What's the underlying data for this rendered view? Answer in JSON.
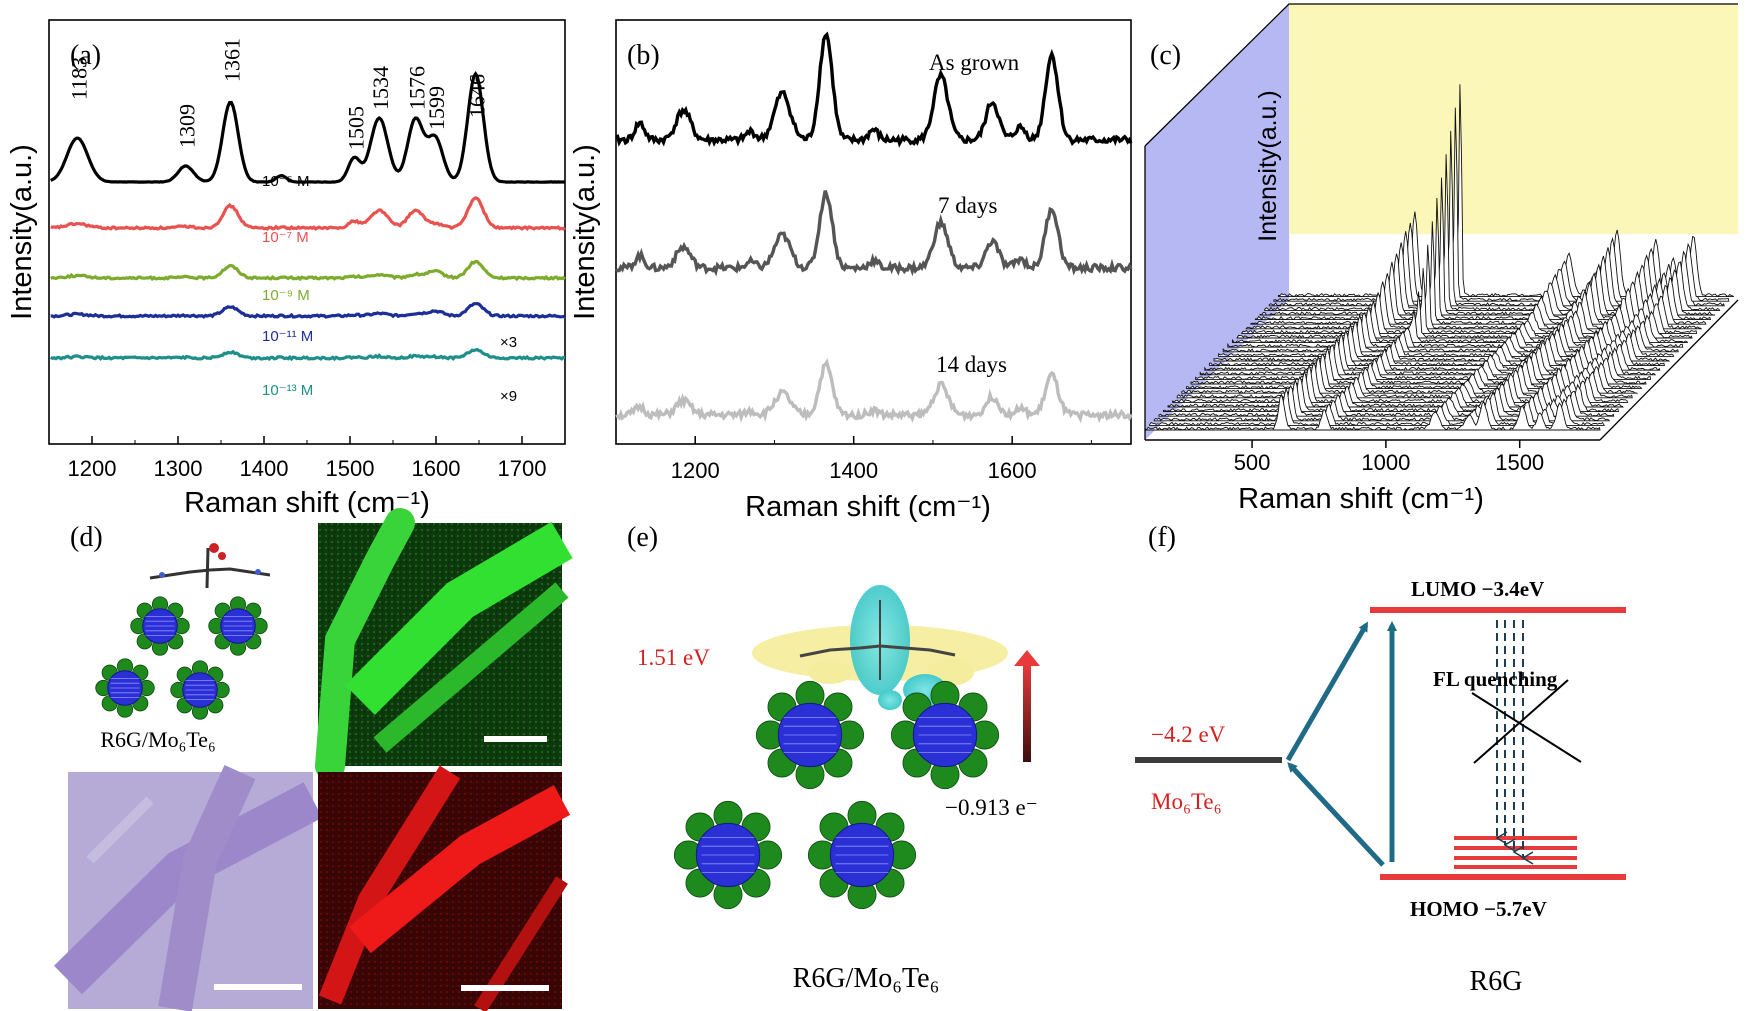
{
  "panels": {
    "a": {
      "letter": "(a)",
      "xlabel": "Raman shift (cm⁻¹)",
      "ylabel": "Intensity(a.u.)",
      "xticks": [
        "1200",
        "1300",
        "1400",
        "1500",
        "1600",
        "1700"
      ],
      "peaks": [
        "1183",
        "1309",
        "1361",
        "1505",
        "1534",
        "1576",
        "1599",
        "1646"
      ],
      "series": [
        {
          "label": "10⁻⁵ M",
          "color": "#000000"
        },
        {
          "label": "10⁻⁷ M",
          "color": "#e8524f"
        },
        {
          "label": "10⁻⁹ M",
          "color": "#7cab2e"
        },
        {
          "label": "10⁻¹¹ M",
          "color": "#1d2f96",
          "mult": "×3"
        },
        {
          "label": "10⁻¹³ M",
          "color": "#1f8f8a",
          "mult": "×9"
        }
      ]
    },
    "b": {
      "letter": "(b)",
      "xlabel": "Raman shift (cm⁻¹)",
      "ylabel": "Intensity(a.u.)",
      "xticks": [
        "1200",
        "1400",
        "1600"
      ],
      "series": [
        {
          "label": "As grown",
          "color": "#000000"
        },
        {
          "label": "7 days",
          "color": "#555555"
        },
        {
          "label": "14 days",
          "color": "#bdbdbd"
        }
      ]
    },
    "c": {
      "letter": "(c)",
      "xlabel": "Raman shift (cm⁻¹)",
      "ylabel": "Intensity(a.u.)",
      "xticks": [
        "500",
        "1000",
        "1500"
      ]
    },
    "d": {
      "letter": "(d)",
      "caption": "R6G/Mo₆Te₆"
    },
    "e": {
      "letter": "(e)",
      "energy": "1.51 eV",
      "charge": "−0.913 e⁻",
      "caption": "R6G/Mo₆Te₆"
    },
    "f": {
      "letter": "(f)",
      "lumo": "LUMO −3.4eV",
      "homo": "HOMO −5.7eV",
      "fermi": "−4.2 eV",
      "material": "Mo₆Te₆",
      "quench": "FL quenching",
      "caption": "R6G"
    }
  },
  "chart_data": [
    {
      "type": "line",
      "panel": "a",
      "xlabel": "Raman shift (cm⁻¹)",
      "ylabel": "Intensity(a.u.)",
      "xlim": [
        1150,
        1750
      ],
      "peak_positions": [
        1183,
        1309,
        1361,
        1505,
        1534,
        1576,
        1599,
        1646
      ],
      "series": [
        {
          "name": "10⁻⁵ M",
          "relative_intensity": 1.0
        },
        {
          "name": "10⁻⁷ M",
          "relative_intensity": 0.2
        },
        {
          "name": "10⁻⁹ M",
          "relative_intensity": 0.1
        },
        {
          "name": "10⁻¹¹ M",
          "relative_intensity": 0.06,
          "scale": "×3"
        },
        {
          "name": "10⁻¹³ M",
          "relative_intensity": 0.04,
          "scale": "×9"
        }
      ]
    },
    {
      "type": "line",
      "panel": "b",
      "xlabel": "Raman shift (cm⁻¹)",
      "ylabel": "Intensity(a.u.)",
      "xlim": [
        1100,
        1750
      ],
      "series": [
        {
          "name": "As grown",
          "relative_intensity": 1.0
        },
        {
          "name": "7 days",
          "relative_intensity": 0.6
        },
        {
          "name": "14 days",
          "relative_intensity": 0.4
        }
      ]
    },
    {
      "type": "line",
      "panel": "c",
      "xlabel": "Raman shift (cm⁻¹)",
      "ylabel": "Intensity(a.u.)",
      "xlim": [
        100,
        1800
      ],
      "note_count": 30
    }
  ]
}
